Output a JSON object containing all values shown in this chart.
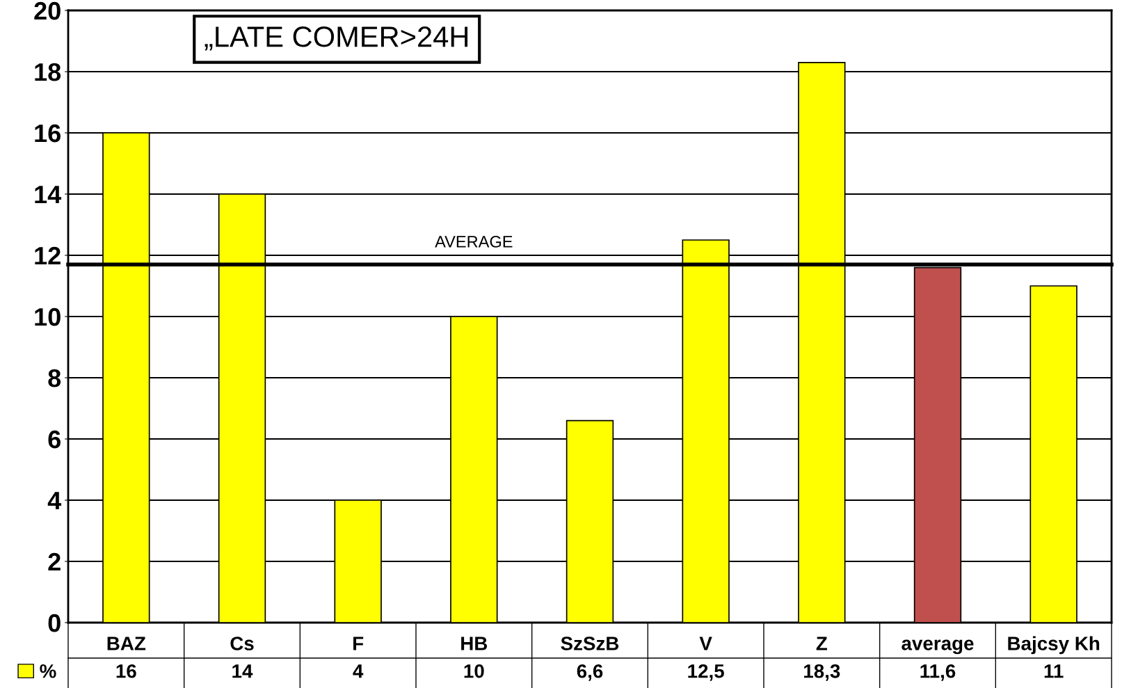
{
  "chart_data": {
    "type": "bar",
    "title": "„LATE COMER>24H",
    "categories": [
      "BAZ",
      "Cs",
      "F",
      "HB",
      "SzSzB",
      "V",
      "Z",
      "average",
      "Bajcsy Kh"
    ],
    "series": [
      {
        "name": "%",
        "color": "#ffff00",
        "colors": [
          "#ffff00",
          "#ffff00",
          "#ffff00",
          "#ffff00",
          "#ffff00",
          "#ffff00",
          "#ffff00",
          "#c0504d",
          "#ffff00"
        ],
        "values": [
          16,
          14,
          4,
          10,
          6.6,
          12.5,
          18.3,
          11.6,
          11
        ],
        "value_labels": [
          "16",
          "14",
          "4",
          "10",
          "6,6",
          "12,5",
          "18,3",
          "11,6",
          "11"
        ]
      }
    ],
    "ylim": [
      0,
      20
    ],
    "yticks": [
      0,
      2,
      4,
      6,
      8,
      10,
      12,
      14,
      16,
      18,
      20
    ],
    "grid": "y",
    "legend": "bottom left",
    "ref_lines": [
      {
        "axis": "y",
        "value": 11.7,
        "label": "AVERAGE"
      }
    ]
  }
}
